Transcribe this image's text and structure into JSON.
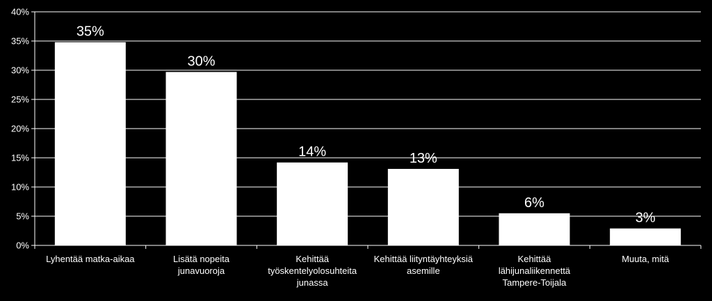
{
  "chart_data": {
    "type": "bar",
    "title": "",
    "xlabel": "",
    "ylabel": "",
    "ylim": [
      0,
      40
    ],
    "yticks": [
      "0%",
      "5%",
      "10%",
      "15%",
      "20%",
      "25%",
      "30%",
      "35%",
      "40%"
    ],
    "ytick_values": [
      0,
      5,
      10,
      15,
      20,
      25,
      30,
      35,
      40
    ],
    "grid": true,
    "legend": "none",
    "categories": [
      [
        "Lyhentää matka-aikaa"
      ],
      [
        "Lisätä nopeita",
        "junavuoroja"
      ],
      [
        "Kehittää",
        "työskentelyolosuhteita",
        "junassa"
      ],
      [
        "Kehittää liityntäyhteyksiä",
        "asemille"
      ],
      [
        "Kehittää",
        "lähijunaliikennettä",
        "Tampere-Toijala"
      ],
      [
        "Muuta, mitä"
      ]
    ],
    "values": [
      34.8,
      29.7,
      14.2,
      13.1,
      5.5,
      2.9
    ],
    "data_labels": [
      "35%",
      "30%",
      "14%",
      "13%",
      "6%",
      "3%"
    ],
    "colors": {
      "background": "#000000",
      "bar": "#ffffff",
      "grid": "#ffffff",
      "axis": "#ffffff",
      "text": "#ffffff"
    }
  }
}
